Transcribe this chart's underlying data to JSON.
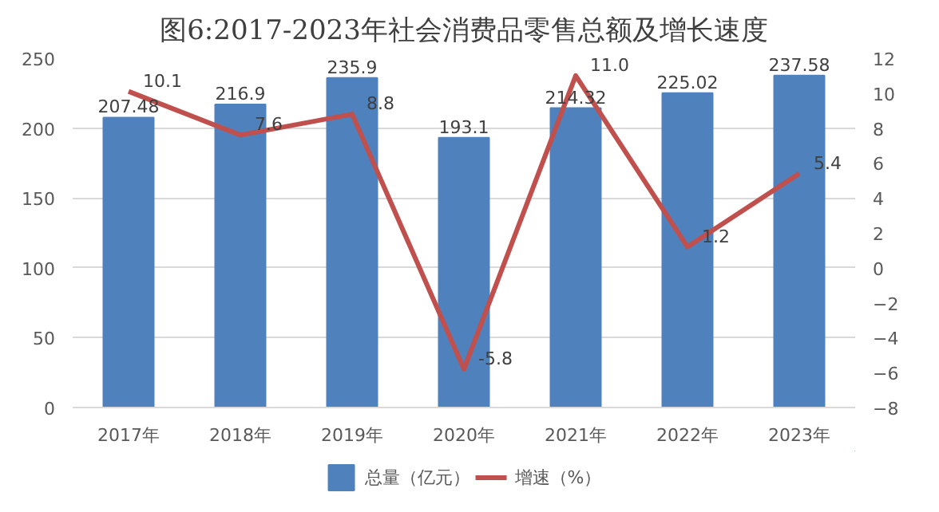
{
  "chart_data": {
    "type": "bar",
    "title": "图6:2017-2023年社会消费品零售总额及增长速度",
    "categories": [
      "2017年",
      "2018年",
      "2019年",
      "2020年",
      "2021年",
      "2022年",
      "2023年"
    ],
    "series": [
      {
        "name": "总量（亿元）",
        "color": "#4f81bd",
        "values": [
          207.48,
          216.9,
          235.9,
          193.1,
          214.32,
          225.02,
          237.58
        ],
        "value_labels": [
          "207.48",
          "216.9",
          "235.9",
          "193.1",
          "214.32",
          "225.02",
          "237.58"
        ]
      },
      {
        "name": "增速（%）",
        "type": "line",
        "axis": "y2",
        "color": "#c0504d",
        "values": [
          10.1,
          7.6,
          8.8,
          -5.8,
          11.0,
          1.2,
          5.4
        ],
        "value_labels": [
          "10.1",
          "7.6",
          "8.8",
          "-5.8",
          "11.0",
          "1.2",
          "5.4"
        ]
      }
    ],
    "ylim": [
      0,
      250
    ],
    "yticks": [
      0,
      50,
      100,
      150,
      200,
      250
    ],
    "y2lim": [
      -8,
      12
    ],
    "y2ticks": [
      -8,
      -6,
      -4,
      -2,
      0,
      2,
      4,
      6,
      8,
      10,
      12
    ],
    "grid": "y",
    "legend": "bottom",
    "line_style": "solid",
    "marker": "none"
  }
}
